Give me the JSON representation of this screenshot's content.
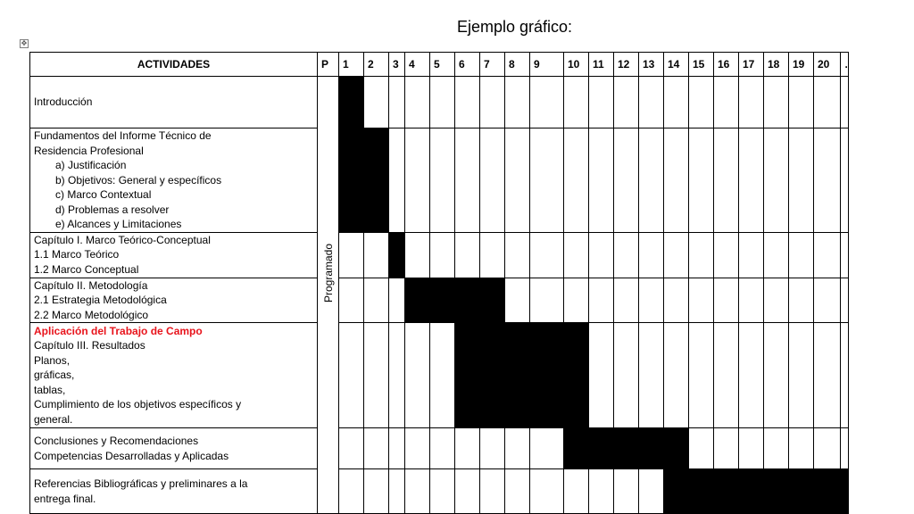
{
  "title": "Ejemplo gráfico:",
  "move_handle_icon": "move-handle-icon",
  "table": {
    "header": {
      "activity": "ACTIVIDADES",
      "p": "P",
      "weeks": [
        "1",
        "2",
        "3",
        "4",
        "5",
        "6",
        "7",
        "8",
        "9",
        "10",
        "11",
        "12",
        "13",
        "14",
        "15",
        "16",
        "17",
        "18",
        "19",
        "20",
        "…"
      ]
    },
    "p_label": "Programado",
    "rows": [
      {
        "lines": [
          {
            "text": "Introducción"
          }
        ],
        "filled_weeks": [
          1
        ]
      },
      {
        "lines": [
          {
            "text": "Fundamentos del Informe Técnico de"
          },
          {
            "text": "Residencia Profesional"
          },
          {
            "text": "a)   Justificación",
            "indent": true
          },
          {
            "text": "b)   Objetivos: General y específicos",
            "indent": true
          },
          {
            "text": "c)   Marco Contextual",
            "indent": true
          },
          {
            "text": "d)   Problemas a resolver",
            "indent": true
          },
          {
            "text": "e)   Alcances y Limitaciones",
            "indent": true
          }
        ],
        "filled_weeks": [
          1,
          2
        ]
      },
      {
        "lines": [
          {
            "text": "Capítulo I. Marco Teórico-Conceptual"
          },
          {
            "text": "1.1 Marco Teórico"
          },
          {
            "text": "1.2 Marco Conceptual"
          }
        ],
        "filled_weeks": [
          3
        ]
      },
      {
        "lines": [
          {
            "text": "Capítulo II. Metodología"
          },
          {
            "text": "2.1 Estrategia Metodológica"
          },
          {
            "text": "2.2 Marco Metodológico"
          }
        ],
        "filled_weeks": [
          4,
          5,
          6,
          7
        ]
      },
      {
        "lines": [
          {
            "text": "Aplicación del Trabajo de Campo",
            "highlight": true
          },
          {
            "text": "Capítulo III. Resultados"
          },
          {
            "text": "Planos,"
          },
          {
            "text": "gráficas,"
          },
          {
            "text": "tablas,"
          },
          {
            "text": "Cumplimiento de los objetivos específicos y"
          },
          {
            "text": "general."
          }
        ],
        "filled_weeks": [
          6,
          7,
          8,
          9,
          10
        ]
      },
      {
        "lines": [
          {
            "text": "Conclusiones y Recomendaciones"
          },
          {
            "text": "Competencias Desarrolladas y Aplicadas"
          }
        ],
        "filled_weeks": [
          10,
          11,
          12,
          13,
          14
        ]
      },
      {
        "lines": [
          {
            "text": "Referencias Bibliográficas y preliminares a la"
          },
          {
            "text": "entrega final."
          }
        ],
        "filled_weeks": [
          14,
          15,
          16,
          17,
          18,
          19,
          20,
          21
        ]
      }
    ]
  }
}
